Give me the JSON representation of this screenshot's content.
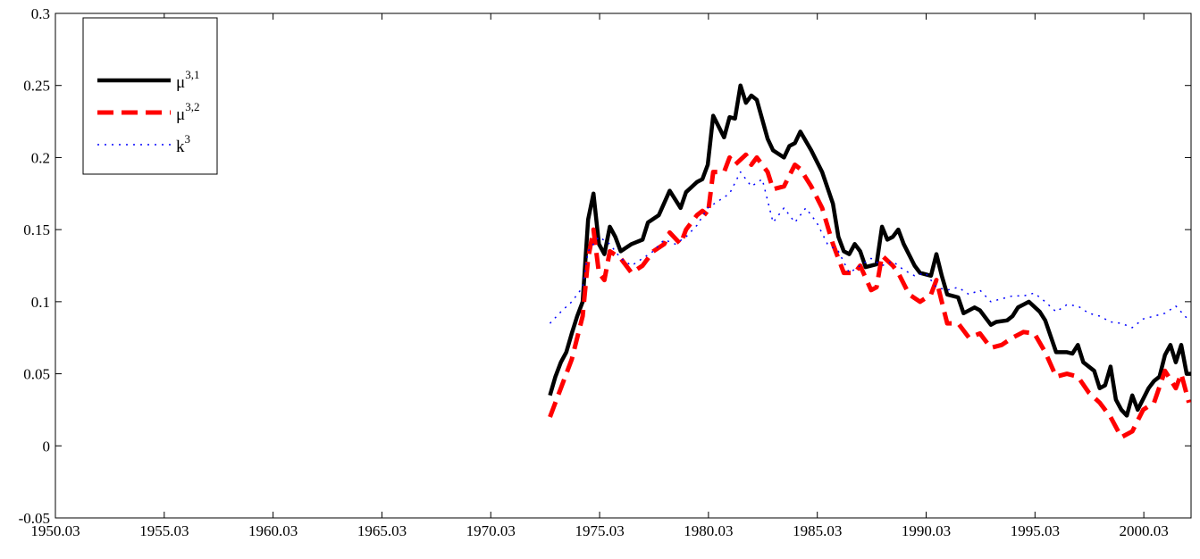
{
  "chart_data": {
    "type": "line",
    "xlim": [
      1950.03,
      2002.2
    ],
    "ylim": [
      -0.05,
      0.3
    ],
    "xticks": [
      1950.03,
      1955.03,
      1960.03,
      1965.03,
      1970.03,
      1975.03,
      1980.03,
      1985.03,
      1990.03,
      1995.03,
      2000.03
    ],
    "yticks": [
      -0.05,
      0,
      0.05,
      0.1,
      0.15,
      0.2,
      0.25,
      0.3
    ],
    "legend": "upper left",
    "series": [
      {
        "name": "μ3,1",
        "color": "#000000",
        "dash": "solid",
        "width": 4.5,
        "x": [
          1972.75,
          1973.0,
          1973.25,
          1973.5,
          1973.75,
          1974.0,
          1974.25,
          1974.5,
          1974.75,
          1975.0,
          1975.25,
          1975.5,
          1975.75,
          1976.0,
          1976.5,
          1977.0,
          1977.25,
          1977.75,
          1978.25,
          1978.75,
          1979.0,
          1979.5,
          1979.75,
          1980.0,
          1980.25,
          1980.75,
          1981.0,
          1981.25,
          1981.5,
          1981.75,
          1982.0,
          1982.25,
          1982.75,
          1983.0,
          1983.5,
          1983.75,
          1984.0,
          1984.25,
          1984.75,
          1985.25,
          1985.75,
          1986.0,
          1986.25,
          1986.5,
          1986.75,
          1987.0,
          1987.25,
          1987.75,
          1988.0,
          1988.25,
          1988.5,
          1988.75,
          1989.0,
          1989.5,
          1989.75,
          1990.25,
          1990.5,
          1990.75,
          1991.0,
          1991.5,
          1991.75,
          1992.25,
          1992.5,
          1993.0,
          1993.25,
          1993.75,
          1994.0,
          1994.25,
          1994.75,
          1995.25,
          1995.5,
          1996.0,
          1996.5,
          1996.75,
          1997.0,
          1997.25,
          1997.75,
          1998.0,
          1998.25,
          1998.5,
          1998.75,
          1999.0,
          1999.25,
          1999.5,
          1999.75,
          2000.25,
          2000.5,
          2000.75,
          2001.0,
          2001.25,
          2001.5,
          2001.75,
          2002.0,
          2002.2
        ],
        "values": [
          0.035,
          0.048,
          0.058,
          0.065,
          0.078,
          0.09,
          0.1,
          0.157,
          0.175,
          0.14,
          0.133,
          0.152,
          0.145,
          0.135,
          0.14,
          0.143,
          0.155,
          0.16,
          0.177,
          0.165,
          0.176,
          0.183,
          0.185,
          0.195,
          0.229,
          0.214,
          0.228,
          0.227,
          0.25,
          0.238,
          0.243,
          0.24,
          0.213,
          0.205,
          0.2,
          0.208,
          0.21,
          0.218,
          0.205,
          0.19,
          0.168,
          0.145,
          0.135,
          0.133,
          0.14,
          0.135,
          0.124,
          0.126,
          0.152,
          0.143,
          0.145,
          0.15,
          0.14,
          0.125,
          0.12,
          0.118,
          0.133,
          0.118,
          0.105,
          0.103,
          0.092,
          0.096,
          0.094,
          0.084,
          0.086,
          0.087,
          0.09,
          0.096,
          0.1,
          0.093,
          0.087,
          0.065,
          0.065,
          0.064,
          0.07,
          0.058,
          0.052,
          0.04,
          0.042,
          0.055,
          0.032,
          0.025,
          0.021,
          0.035,
          0.025,
          0.04,
          0.045,
          0.048,
          0.063,
          0.07,
          0.058,
          0.07,
          0.05,
          0.05
        ]
      },
      {
        "name": "μ3,2",
        "color": "#ff0000",
        "dash": "dashed",
        "width": 5,
        "x": [
          1972.75,
          1973.25,
          1973.75,
          1974.25,
          1974.5,
          1974.75,
          1975.0,
          1975.25,
          1975.5,
          1976.0,
          1976.5,
          1977.0,
          1977.5,
          1978.0,
          1978.25,
          1978.75,
          1979.0,
          1979.5,
          1979.75,
          1980.0,
          1980.25,
          1980.75,
          1981.0,
          1981.25,
          1981.75,
          1982.0,
          1982.25,
          1982.75,
          1983.0,
          1983.5,
          1984.0,
          1984.25,
          1984.75,
          1985.25,
          1985.75,
          1986.25,
          1986.75,
          1987.0,
          1987.5,
          1987.75,
          1988.0,
          1988.5,
          1988.75,
          1989.25,
          1989.75,
          1990.25,
          1990.5,
          1990.75,
          1991.0,
          1991.5,
          1992.0,
          1992.5,
          1993.0,
          1993.5,
          1994.0,
          1994.5,
          1995.0,
          1995.5,
          1996.0,
          1996.5,
          1997.0,
          1997.5,
          1998.0,
          1998.5,
          1999.0,
          1999.5,
          2000.0,
          2000.5,
          2001.0,
          2001.5,
          2001.75,
          2002.1
        ],
        "values": [
          0.02,
          0.04,
          0.06,
          0.09,
          0.13,
          0.15,
          0.12,
          0.115,
          0.135,
          0.13,
          0.12,
          0.125,
          0.135,
          0.14,
          0.148,
          0.14,
          0.15,
          0.16,
          0.163,
          0.16,
          0.19,
          0.19,
          0.2,
          0.195,
          0.202,
          0.195,
          0.2,
          0.19,
          0.178,
          0.18,
          0.195,
          0.192,
          0.18,
          0.165,
          0.14,
          0.12,
          0.12,
          0.125,
          0.108,
          0.11,
          0.132,
          0.125,
          0.12,
          0.105,
          0.1,
          0.105,
          0.115,
          0.1,
          0.085,
          0.085,
          0.075,
          0.078,
          0.068,
          0.07,
          0.075,
          0.079,
          0.078,
          0.065,
          0.048,
          0.05,
          0.048,
          0.037,
          0.03,
          0.02,
          0.006,
          0.01,
          0.025,
          0.03,
          0.052,
          0.04,
          0.05,
          0.03
        ]
      },
      {
        "name": "k3",
        "color": "#0000ff",
        "dash": "dotted",
        "width": 1.5,
        "x": [
          1972.75,
          1973.25,
          1973.75,
          1974.25,
          1974.5,
          1974.75,
          1975.0,
          1975.5,
          1976.0,
          1976.5,
          1977.0,
          1977.5,
          1978.0,
          1978.5,
          1979.0,
          1979.5,
          1980.0,
          1980.5,
          1981.0,
          1981.5,
          1982.0,
          1982.5,
          1983.0,
          1983.5,
          1984.0,
          1984.5,
          1985.0,
          1985.5,
          1986.0,
          1986.5,
          1987.0,
          1987.5,
          1988.0,
          1988.5,
          1989.0,
          1989.5,
          1990.0,
          1990.5,
          1991.0,
          1991.5,
          1992.0,
          1992.5,
          1993.0,
          1993.5,
          1994.0,
          1994.5,
          1995.0,
          1995.5,
          1996.0,
          1996.5,
          1997.0,
          1997.5,
          1998.0,
          1998.5,
          1999.0,
          1999.5,
          2000.0,
          2000.5,
          2001.0,
          2001.5,
          2002.1
        ],
        "values": [
          0.085,
          0.093,
          0.1,
          0.11,
          0.135,
          0.14,
          0.145,
          0.14,
          0.13,
          0.125,
          0.13,
          0.135,
          0.143,
          0.14,
          0.145,
          0.153,
          0.165,
          0.17,
          0.175,
          0.19,
          0.18,
          0.185,
          0.155,
          0.165,
          0.155,
          0.165,
          0.155,
          0.14,
          0.135,
          0.12,
          0.125,
          0.13,
          0.125,
          0.128,
          0.122,
          0.118,
          0.12,
          0.11,
          0.108,
          0.11,
          0.105,
          0.108,
          0.1,
          0.102,
          0.104,
          0.104,
          0.106,
          0.1,
          0.093,
          0.098,
          0.097,
          0.092,
          0.09,
          0.086,
          0.085,
          0.082,
          0.088,
          0.09,
          0.092,
          0.097,
          0.087
        ]
      }
    ]
  }
}
